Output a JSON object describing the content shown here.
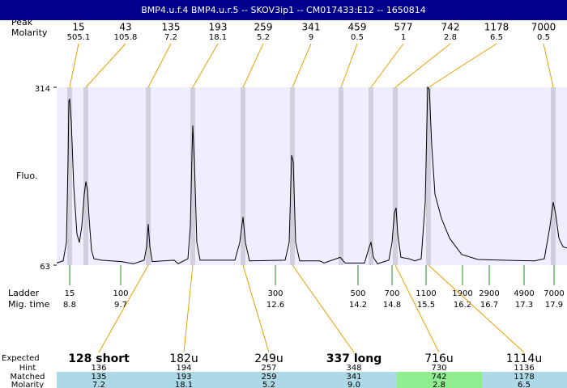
{
  "header": {
    "title": "BMP4.u.f.4  BMP4.u.r.5 -- SKOV3ip1 -- CM017433:E12 -- 1650814"
  },
  "peaks": {
    "label": "Peak",
    "molarity_label": "Molarity",
    "sizes": [
      15,
      43,
      135,
      193,
      259,
      341,
      459,
      577,
      742,
      1178,
      7000
    ],
    "molarities": [
      505.1,
      105.8,
      7.2,
      18.1,
      5.2,
      9,
      0.5,
      1,
      2.8,
      6.5,
      0.5
    ]
  },
  "chart_data": {
    "type": "line",
    "y_label": "Fluo.",
    "color": "#000000",
    "ylim": [
      63,
      314
    ],
    "yticks": [
      63,
      314
    ],
    "xlim": [
      0,
      630
    ],
    "x": [
      0,
      8,
      12,
      14,
      15,
      16,
      18,
      21,
      25,
      28,
      31,
      34,
      36,
      38,
      40,
      43,
      46,
      55,
      80,
      95,
      108,
      111,
      113,
      115,
      118,
      145,
      150,
      162,
      165,
      167,
      168,
      170,
      173,
      177,
      220,
      226,
      230,
      233,
      238,
      282,
      287,
      289,
      290,
      292,
      295,
      300,
      325,
      330,
      350,
      356,
      380,
      386,
      388,
      391,
      396,
      410,
      414,
      417,
      419,
      421,
      425,
      435,
      442,
      450,
      455,
      458,
      460,
      463,
      467,
      475,
      485,
      500,
      520,
      550,
      590,
      602,
      609,
      613,
      616,
      620,
      625,
      630
    ],
    "values": [
      66,
      69,
      95,
      209,
      295,
      297,
      266,
      175,
      107,
      95,
      118,
      163,
      181,
      169,
      129,
      84,
      72,
      70,
      68,
      65,
      70,
      89,
      121,
      89,
      68,
      70,
      65,
      72,
      118,
      220,
      260,
      209,
      95,
      70,
      70,
      95,
      131,
      95,
      69,
      70,
      95,
      175,
      218,
      209,
      95,
      69,
      69,
      66,
      74,
      66,
      66,
      89,
      95,
      74,
      65,
      70,
      95,
      137,
      144,
      107,
      74,
      72,
      69,
      72,
      152,
      314,
      311,
      232,
      163,
      129,
      101,
      78,
      71,
      70,
      69,
      72,
      118,
      152,
      135,
      101,
      89,
      87
    ]
  },
  "ladder": {
    "label": "Ladder",
    "time_label": "Mig. time",
    "sizes": [
      15,
      100,
      300,
      500,
      700,
      1100,
      1900,
      2900,
      4900,
      7000
    ],
    "times": [
      8.8,
      9.7,
      12.6,
      14.2,
      14.8,
      15.5,
      16.2,
      16.7,
      17.3,
      17.9
    ]
  },
  "expected": {
    "labels": {
      "expected": "Expected",
      "hint": "Hint",
      "matched": "Matched",
      "molarity": "Molarity"
    },
    "columns": [
      {
        "expected": "128 short",
        "hint": 136,
        "matched": 135,
        "molarity": "7.2"
      },
      {
        "expected": "182u",
        "hint": 194,
        "matched": 193,
        "molarity": "18.1"
      },
      {
        "expected": "249u",
        "hint": 257,
        "matched": 259,
        "molarity": "5.2"
      },
      {
        "expected": "337 long",
        "hint": 348,
        "matched": 341,
        "molarity": "9.0"
      },
      {
        "expected": "716u",
        "hint": 730,
        "matched": 742,
        "molarity": "2.8"
      },
      {
        "expected": "1114u",
        "hint": 1136,
        "matched": 1178,
        "molarity": "6.5"
      }
    ]
  }
}
